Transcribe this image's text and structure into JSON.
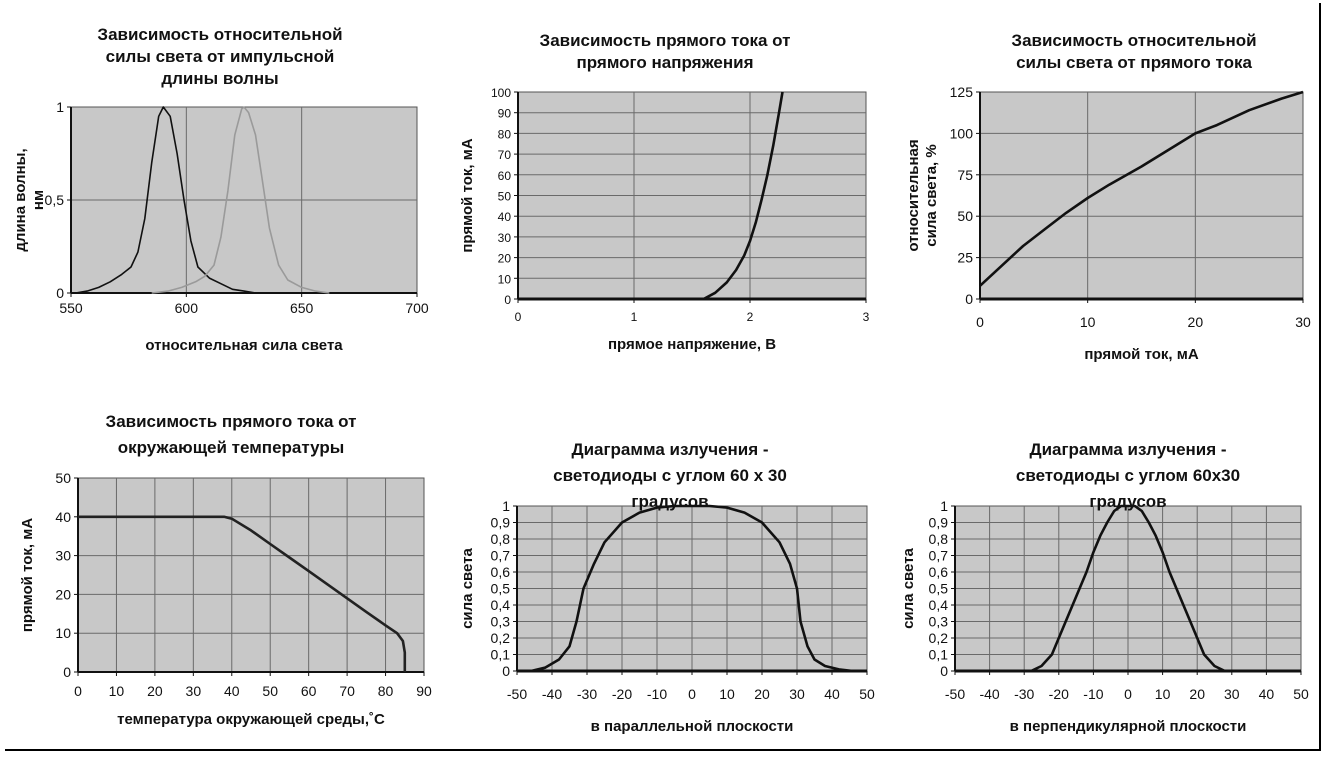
{
  "chart_data": [
    {
      "type": "line",
      "title": [
        "Зависимость относительной",
        "силы света от импульсной",
        "длины волны"
      ],
      "xlabel": "относительная сила света",
      "ylabel": [
        "длина волны,",
        "нм"
      ],
      "xlim": [
        550,
        700
      ],
      "ylim": [
        0,
        1
      ],
      "xticks": [
        550,
        600,
        650,
        700
      ],
      "yticks": [
        0,
        0.5,
        1
      ],
      "xtick_labels": [
        "550",
        "600",
        "650",
        "700"
      ],
      "ytick_labels": [
        "0",
        "0,5",
        "1"
      ],
      "grid": true,
      "series": [
        {
          "color": "#111111",
          "x": [
            552,
            557,
            562,
            567,
            572,
            576,
            579,
            582,
            585,
            588,
            590,
            593,
            596,
            599,
            602,
            605,
            610,
            615,
            620,
            625,
            630
          ],
          "y": [
            0,
            0.01,
            0.03,
            0.06,
            0.1,
            0.14,
            0.22,
            0.4,
            0.7,
            0.95,
            1.0,
            0.95,
            0.75,
            0.5,
            0.28,
            0.14,
            0.08,
            0.05,
            0.02,
            0.01,
            0
          ]
        },
        {
          "color": "#9a9a9a",
          "x": [
            585,
            592,
            598,
            604,
            608,
            612,
            615,
            618,
            621,
            624,
            625,
            627,
            630,
            633,
            636,
            640,
            644,
            650,
            656,
            662
          ],
          "y": [
            0,
            0.01,
            0.03,
            0.06,
            0.09,
            0.15,
            0.3,
            0.55,
            0.85,
            0.99,
            1.0,
            0.97,
            0.85,
            0.6,
            0.35,
            0.15,
            0.07,
            0.03,
            0.01,
            0
          ]
        }
      ]
    },
    {
      "type": "line",
      "title": [
        "Зависимость прямого тока от",
        "прямого напряжения"
      ],
      "xlabel": "прямое напряжение, В",
      "ylabel": [
        "прямой ток, мА"
      ],
      "xlim": [
        0,
        3
      ],
      "ylim": [
        0,
        100
      ],
      "xticks": [
        0,
        1,
        2,
        3
      ],
      "yticks": [
        0,
        10,
        20,
        30,
        40,
        50,
        60,
        70,
        80,
        90,
        100
      ],
      "xtick_labels": [
        "0",
        "1",
        "2",
        "3"
      ],
      "ytick_labels": [
        "0",
        "10",
        "20",
        "30",
        "40",
        "50",
        "60",
        "70",
        "80",
        "90",
        "100"
      ],
      "grid": true,
      "series": [
        {
          "color": "#111111",
          "x": [
            1.6,
            1.7,
            1.8,
            1.88,
            1.95,
            2.0,
            2.05,
            2.1,
            2.15,
            2.2,
            2.25,
            2.28
          ],
          "y": [
            0,
            3,
            8,
            14,
            21,
            28,
            37,
            48,
            60,
            74,
            90,
            100
          ]
        }
      ]
    },
    {
      "type": "line",
      "title": [
        "Зависимость относительной",
        "силы света от прямого тока"
      ],
      "xlabel": "прямой ток, мА",
      "ylabel": [
        "относительная",
        "сила света, %"
      ],
      "xlim": [
        0,
        30
      ],
      "ylim": [
        0,
        125
      ],
      "xticks": [
        0,
        10,
        20,
        30
      ],
      "yticks": [
        0,
        25,
        50,
        75,
        100,
        125
      ],
      "xtick_labels": [
        "0",
        "10",
        "20",
        "30"
      ],
      "ytick_labels": [
        "0",
        "25",
        "50",
        "75",
        "100",
        "125"
      ],
      "grid": true,
      "series": [
        {
          "color": "#111111",
          "x": [
            0,
            2,
            4,
            6,
            8,
            10,
            12,
            15,
            18,
            20,
            22,
            25,
            28,
            30
          ],
          "y": [
            8,
            20,
            32,
            42,
            52,
            61,
            69,
            80,
            92,
            100,
            105,
            114,
            121,
            125
          ]
        }
      ]
    },
    {
      "type": "line",
      "title": [
        "Зависимость прямого тока от",
        "окружающей температуры"
      ],
      "xlabel": "температура окружающей среды,˚С",
      "ylabel": [
        "прямой ток, мА"
      ],
      "xlim": [
        0,
        90
      ],
      "ylim": [
        0,
        50
      ],
      "xticks": [
        0,
        10,
        20,
        30,
        40,
        50,
        60,
        70,
        80,
        90
      ],
      "yticks": [
        0,
        10,
        20,
        30,
        40,
        50
      ],
      "xtick_labels": [
        "0",
        "10",
        "20",
        "30",
        "40",
        "50",
        "60",
        "70",
        "80",
        "90"
      ],
      "ytick_labels": [
        "0",
        "10",
        "20",
        "30",
        "40",
        "50"
      ],
      "grid": true,
      "series": [
        {
          "color": "#222222",
          "x": [
            0,
            38,
            40,
            45,
            50,
            55,
            60,
            65,
            70,
            75,
            80,
            83,
            84.5,
            85,
            85
          ],
          "y": [
            40,
            40,
            39.5,
            36.5,
            33,
            29.5,
            26,
            22.5,
            19,
            15.5,
            12,
            10,
            8,
            5,
            0
          ]
        }
      ]
    },
    {
      "type": "line",
      "title": [
        "Диаграмма излучения -",
        "светодиоды  с углом 60 х 30",
        "градусов"
      ],
      "xlabel": "в параллельной плоскости",
      "ylabel": [
        "сила света"
      ],
      "xlim": [
        -50,
        50
      ],
      "ylim": [
        0,
        1
      ],
      "xticks": [
        -50,
        -40,
        -30,
        -20,
        -10,
        0,
        10,
        20,
        30,
        40,
        50
      ],
      "yticks": [
        0,
        0.1,
        0.2,
        0.3,
        0.4,
        0.5,
        0.6,
        0.7,
        0.8,
        0.9,
        1
      ],
      "xtick_labels": [
        "-50",
        "-40",
        "-30",
        "-20",
        "-10",
        "0",
        "10",
        "20",
        "30",
        "40",
        "50"
      ],
      "ytick_labels": [
        "0",
        "0,1",
        "0,2",
        "0,3",
        "0,4",
        "0,5",
        "0,6",
        "0,7",
        "0,8",
        "0,9",
        "1"
      ],
      "grid": true,
      "series": [
        {
          "color": "#111111",
          "x": [
            -46,
            -42,
            -38,
            -35,
            -33,
            -31,
            -28,
            -25,
            -20,
            -15,
            -10,
            -5,
            0,
            5,
            10,
            15,
            20,
            25,
            28,
            30,
            31,
            33,
            35,
            38,
            42,
            46
          ],
          "y": [
            0,
            0.02,
            0.07,
            0.15,
            0.3,
            0.5,
            0.65,
            0.78,
            0.9,
            0.96,
            0.99,
            1.0,
            1.0,
            1.0,
            0.99,
            0.96,
            0.9,
            0.78,
            0.65,
            0.5,
            0.3,
            0.15,
            0.07,
            0.03,
            0.01,
            0
          ]
        }
      ]
    },
    {
      "type": "line",
      "title": [
        "Диаграмма излучения -",
        "светодиоды с углом 60х30",
        "градусов"
      ],
      "xlabel": "в перпендикулярной плоскости",
      "ylabel": [
        "сила света"
      ],
      "xlim": [
        -50,
        50
      ],
      "ylim": [
        0,
        1
      ],
      "xticks": [
        -50,
        -40,
        -30,
        -20,
        -10,
        0,
        10,
        20,
        30,
        40,
        50
      ],
      "yticks": [
        0,
        0.1,
        0.2,
        0.3,
        0.4,
        0.5,
        0.6,
        0.7,
        0.8,
        0.9,
        1
      ],
      "xtick_labels": [
        "-50",
        "-40",
        "-30",
        "-20",
        "-10",
        "0",
        "10",
        "20",
        "30",
        "40",
        "50"
      ],
      "ytick_labels": [
        "0",
        "0,1",
        "0,2",
        "0,3",
        "0,4",
        "0,5",
        "0,6",
        "0,7",
        "0,8",
        "0,9",
        "1"
      ],
      "grid": true,
      "series": [
        {
          "color": "#111111",
          "x": [
            -28,
            -25,
            -22,
            -20,
            -18,
            -15,
            -12,
            -10,
            -8,
            -6,
            -4,
            -2,
            0,
            2,
            4,
            6,
            8,
            10,
            12,
            15,
            18,
            20,
            22,
            25,
            28
          ],
          "y": [
            0,
            0.03,
            0.1,
            0.2,
            0.3,
            0.45,
            0.6,
            0.72,
            0.82,
            0.9,
            0.97,
            1.0,
            1.0,
            1.0,
            0.97,
            0.9,
            0.82,
            0.72,
            0.6,
            0.45,
            0.3,
            0.2,
            0.1,
            0.03,
            0
          ]
        }
      ]
    }
  ]
}
